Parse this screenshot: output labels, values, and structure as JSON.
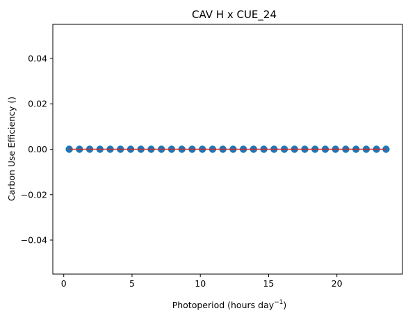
{
  "chart_data": {
    "type": "scatter",
    "title": "CAV H x CUE_24",
    "xlabel": "Photoperiod (hours day",
    "xlabel_sup": "−1",
    "xlabel_close": ")",
    "ylabel": "Carbon Use Efficiency ()",
    "xlim": [
      -0.8,
      24.8
    ],
    "ylim": [
      -0.055,
      0.055
    ],
    "xticks": [
      0,
      5,
      10,
      15,
      20
    ],
    "xtick_labels": [
      "0",
      "5",
      "10",
      "15",
      "20"
    ],
    "yticks": [
      -0.04,
      -0.02,
      0.0,
      0.02,
      0.04
    ],
    "ytick_labels": [
      "−0.04",
      "−0.02",
      "0.00",
      "0.02",
      "0.04"
    ],
    "grid": false,
    "series": [
      {
        "kind": "points",
        "color": "#1f77b4",
        "x": [
          0.4,
          1.15,
          1.9,
          2.65,
          3.4,
          4.15,
          4.9,
          5.65,
          6.4,
          7.15,
          7.9,
          8.65,
          9.4,
          10.15,
          10.9,
          11.65,
          12.4,
          13.15,
          13.9,
          14.65,
          15.4,
          16.15,
          16.9,
          17.65,
          18.4,
          19.15,
          19.9,
          20.65,
          21.4,
          22.15,
          22.9,
          23.6
        ],
        "y": [
          0,
          0,
          0,
          0,
          0,
          0,
          0,
          0,
          0,
          0,
          0,
          0,
          0,
          0,
          0,
          0,
          0,
          0,
          0,
          0,
          0,
          0,
          0,
          0,
          0,
          0,
          0,
          0,
          0,
          0,
          0,
          0
        ]
      },
      {
        "kind": "fit-line",
        "color": "#d62728",
        "x": [
          0.4,
          23.6
        ],
        "y": [
          0,
          0
        ]
      }
    ]
  }
}
